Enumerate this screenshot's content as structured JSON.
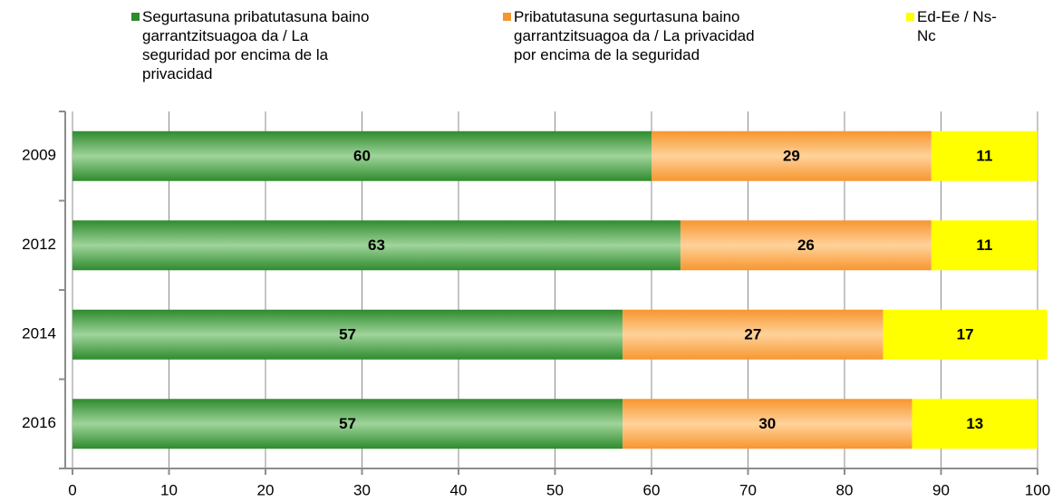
{
  "chart_data": {
    "type": "stacked-barh",
    "categories": [
      "2009",
      "2012",
      "2014",
      "2016"
    ],
    "series": [
      {
        "name": "Segurtasuna pribatutasuna baino garrantzitsuagoa da / La seguridad por encima de la privacidad",
        "color": "#2e8b2e",
        "values": [
          60,
          63,
          57,
          57
        ]
      },
      {
        "name": "Pribatutasuna segurtasuna baino garrantzitsuagoa da / La privacidad por encima de la seguridad",
        "color": "#f7962f",
        "values": [
          29,
          26,
          27,
          30
        ]
      },
      {
        "name": "Ed-Ee / Ns-Nc",
        "color": "#ffff00",
        "values": [
          11,
          11,
          17,
          13
        ]
      }
    ],
    "xlim": [
      0,
      100
    ],
    "xticks": [
      0,
      10,
      20,
      30,
      40,
      50,
      60,
      70,
      80,
      90,
      100
    ],
    "grid": true
  }
}
